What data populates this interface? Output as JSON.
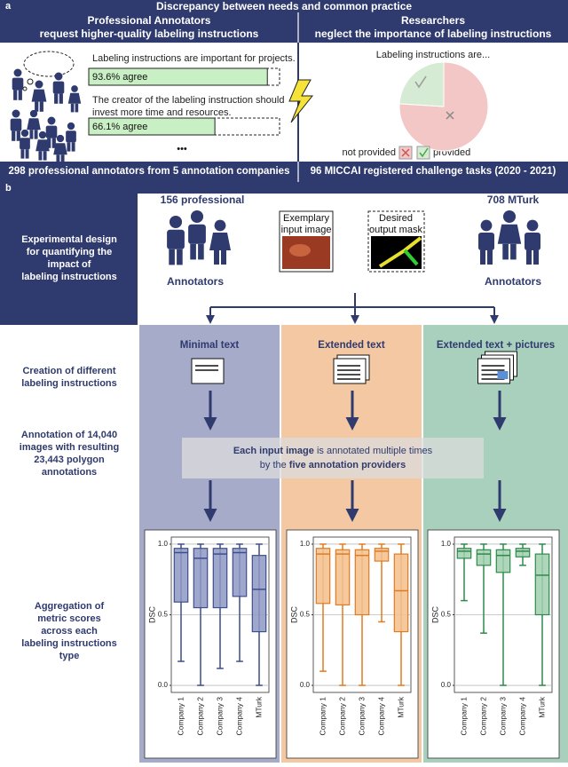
{
  "section_a": {
    "label": "a",
    "title": "Discrepancy between needs and common practice",
    "left": {
      "heading": [
        "Professional Annotators",
        "request higher-quality labeling instructions"
      ],
      "xlim": [
        0,
        100
      ],
      "statements": [
        {
          "text": [
            "Labeling instructions are important for projects."
          ],
          "value": 93.6,
          "label": "93.6% agree"
        },
        {
          "text": [
            "The creator of the labeling instruction should",
            "invest more time and resources."
          ],
          "value": 66.1,
          "label": "66.1% agree"
        }
      ],
      "more": "•••",
      "footer": "298 professional annotators from 5 annotation companies"
    },
    "right": {
      "heading": [
        "Researchers",
        "neglect the importance of labeling instructions"
      ],
      "pie_title": "Labeling instructions are...",
      "slices": [
        {
          "name": "not provided",
          "value": 76,
          "color": "#f4c7c7"
        },
        {
          "name": "provided",
          "value": 24,
          "color": "#d6ebd3"
        }
      ],
      "footer": "96 MICCAI registered challenge tasks (2020 - 2021)"
    }
  },
  "section_b": {
    "label": "b",
    "design": [
      "Experimental design",
      "for quantifying the",
      "impact of",
      "labeling instructions"
    ],
    "professional": {
      "count": "156 professional",
      "label": "Annotators"
    },
    "mturk": {
      "count": "708 MTurk",
      "label": "Annotators"
    },
    "input_image": [
      "Exemplary",
      "input image"
    ],
    "output_mask": [
      "Desired",
      "output mask"
    ],
    "columns": [
      {
        "title": "Minimal text",
        "background": "#a6abc9"
      },
      {
        "title": "Extended text",
        "background": "#f3c8a3"
      },
      {
        "title": "Extended text + pictures",
        "background": "#a9cfbd"
      }
    ],
    "steps": [
      [
        "Creation of different",
        "labeling instructions"
      ],
      [
        "Annotation of 14,040",
        "images with resulting",
        "23,443 polygon",
        "annotations"
      ],
      [
        "Aggregation of",
        "metric scores",
        "across each",
        "labeling instructions",
        "type"
      ]
    ],
    "gray_box": {
      "line1": [
        "Each input image",
        " is annotated multiple times"
      ],
      "line2": [
        "by the ",
        "five annotation providers"
      ]
    }
  },
  "chart_data": [
    {
      "type": "box",
      "color": "#3d4e8c",
      "fill": "#8e98c3",
      "ylabel": "DSC",
      "ylim": [
        -0.05,
        1.05
      ],
      "yticks": [
        {
          "value": 0,
          "label": "0.0"
        },
        {
          "value": 0.5,
          "label": "0.5"
        },
        {
          "value": 1,
          "label": "1.0"
        }
      ],
      "grid": true,
      "categories": [
        "Company 1",
        "Company 2",
        "Company 3",
        "Company 4",
        "MTurk"
      ],
      "boxes": [
        {
          "min": 0.17,
          "q1": 0.59,
          "median": 0.94,
          "q3": 0.97,
          "max": 1.0
        },
        {
          "min": 0.0,
          "q1": 0.55,
          "median": 0.9,
          "q3": 0.97,
          "max": 1.0
        },
        {
          "min": 0.12,
          "q1": 0.55,
          "median": 0.93,
          "q3": 0.97,
          "max": 1.0
        },
        {
          "min": 0.17,
          "q1": 0.63,
          "median": 0.94,
          "q3": 0.97,
          "max": 1.0
        },
        {
          "min": 0.0,
          "q1": 0.38,
          "median": 0.68,
          "q3": 0.92,
          "max": 1.0
        }
      ]
    },
    {
      "type": "box",
      "color": "#e07b20",
      "fill": "#f3c08d",
      "ylabel": "DSC",
      "ylim": [
        -0.05,
        1.05
      ],
      "yticks": [
        {
          "value": 0,
          "label": "0.0"
        },
        {
          "value": 0.5,
          "label": "0.5"
        },
        {
          "value": 1,
          "label": "1.0"
        }
      ],
      "grid": true,
      "categories": [
        "Company 1",
        "Company 2",
        "Company 3",
        "Company 4",
        "MTurk"
      ],
      "boxes": [
        {
          "min": 0.1,
          "q1": 0.58,
          "median": 0.93,
          "q3": 0.97,
          "max": 1.0
        },
        {
          "min": 0.0,
          "q1": 0.57,
          "median": 0.93,
          "q3": 0.96,
          "max": 1.0
        },
        {
          "min": 0.0,
          "q1": 0.5,
          "median": 0.92,
          "q3": 0.96,
          "max": 1.0
        },
        {
          "min": 0.45,
          "q1": 0.88,
          "median": 0.95,
          "q3": 0.97,
          "max": 1.0
        },
        {
          "min": 0.0,
          "q1": 0.38,
          "median": 0.67,
          "q3": 0.93,
          "max": 1.0
        }
      ]
    },
    {
      "type": "box",
      "color": "#2e8a4a",
      "fill": "#9fcfae",
      "ylabel": "DSC",
      "ylim": [
        -0.05,
        1.05
      ],
      "yticks": [
        {
          "value": 0,
          "label": "0.0"
        },
        {
          "value": 0.5,
          "label": "0.5"
        },
        {
          "value": 1,
          "label": "1.0"
        }
      ],
      "grid": true,
      "categories": [
        "Company 1",
        "Company 2",
        "Company 3",
        "Company 4",
        "MTurk"
      ],
      "boxes": [
        {
          "min": 0.6,
          "q1": 0.9,
          "median": 0.95,
          "q3": 0.97,
          "max": 1.0
        },
        {
          "min": 0.37,
          "q1": 0.85,
          "median": 0.93,
          "q3": 0.96,
          "max": 1.0
        },
        {
          "min": 0.0,
          "q1": 0.8,
          "median": 0.92,
          "q3": 0.96,
          "max": 1.0
        },
        {
          "min": 0.85,
          "q1": 0.91,
          "median": 0.95,
          "q3": 0.97,
          "max": 1.0
        },
        {
          "min": 0.0,
          "q1": 0.5,
          "median": 0.78,
          "q3": 0.93,
          "max": 1.0
        }
      ]
    }
  ]
}
